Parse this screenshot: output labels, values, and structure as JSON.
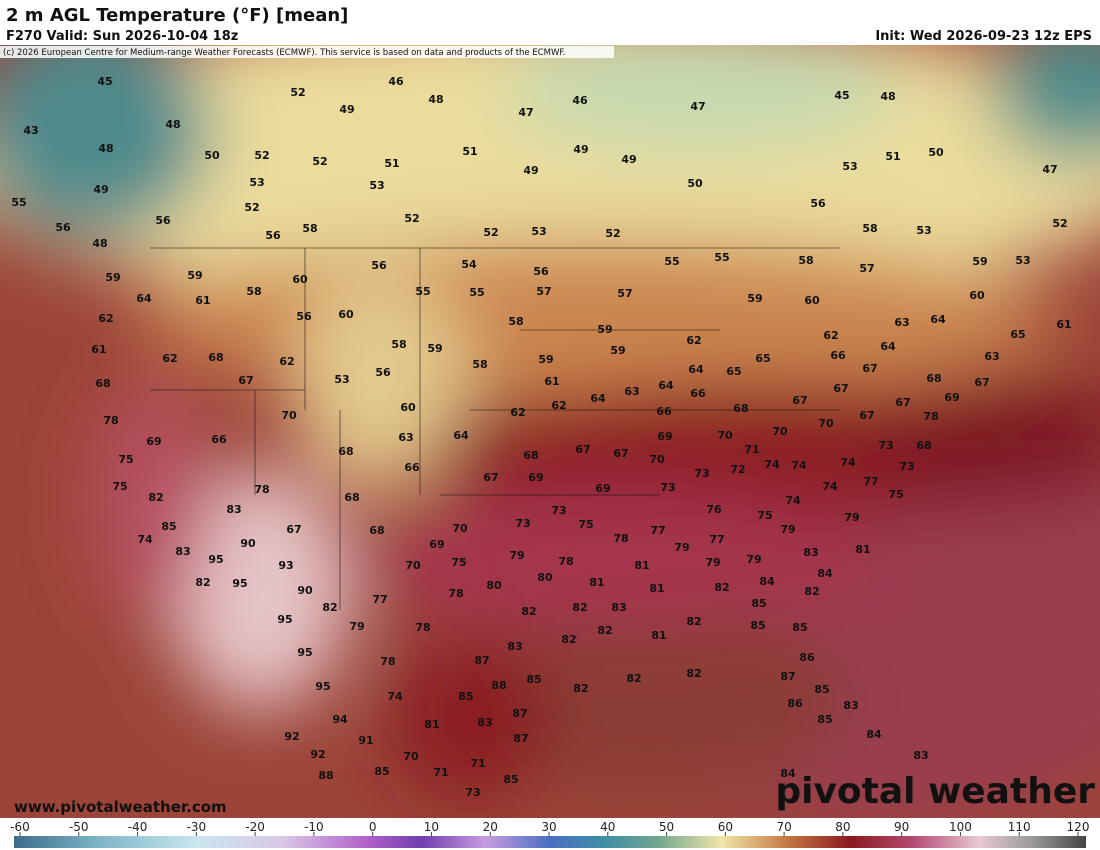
{
  "header": {
    "title": "2 m AGL Temperature (°F) [mean]",
    "valid": "F270 Valid: Sun 2026-10-04 18z",
    "init": "Init: Wed 2026-09-23 12z EPS",
    "copyright": "(c) 2026 European Centre for Medium-range Weather Forecasts (ECMWF). This service is based on data and products of the ECMWF."
  },
  "map": {
    "labels": [
      45,
      43,
      48,
      49,
      55,
      48,
      52,
      50,
      52,
      53,
      52,
      56,
      56,
      58,
      52,
      46,
      48,
      49,
      51,
      53,
      52,
      51,
      47,
      46,
      49,
      49,
      49,
      47,
      50,
      52,
      53,
      52,
      45,
      48,
      53,
      51,
      50,
      47,
      56,
      58,
      53,
      52,
      56,
      48,
      59,
      59,
      64,
      61,
      58,
      60,
      56,
      54,
      56,
      55,
      55,
      58,
      57,
      59,
      53,
      62,
      61,
      62,
      68,
      67,
      62,
      56,
      60,
      58,
      56,
      53,
      55,
      55,
      57,
      57,
      58,
      59,
      58,
      59,
      61,
      59,
      59,
      62,
      64,
      65,
      65,
      59,
      60,
      62,
      66,
      67,
      64,
      63,
      64,
      60,
      65,
      63,
      61,
      68,
      69,
      67,
      68,
      78,
      69,
      66,
      70,
      60,
      63,
      66,
      68,
      64,
      62,
      62,
      64,
      63,
      64,
      66,
      66,
      69,
      68,
      70,
      71,
      70,
      67,
      70,
      67,
      67,
      67,
      78,
      68,
      73,
      73,
      75,
      75,
      82,
      78,
      83,
      68,
      67,
      69,
      68,
      67,
      67,
      70,
      73,
      73,
      69,
      72,
      74,
      74,
      74,
      74,
      77,
      75,
      74,
      76,
      75,
      85,
      74,
      83,
      82,
      95,
      90,
      93,
      95,
      90,
      67,
      68,
      69,
      70,
      70,
      75,
      73,
      73,
      75,
      78,
      77,
      77,
      79,
      79,
      79,
      79,
      81,
      83,
      79,
      78,
      81,
      79,
      80,
      80,
      81,
      81,
      82,
      84,
      84,
      82,
      85,
      95,
      82,
      77,
      79,
      78,
      78,
      82,
      82,
      83,
      82,
      82,
      83,
      81,
      82,
      85,
      85,
      95,
      78,
      87,
      88,
      85,
      85,
      74,
      95,
      82,
      82,
      82,
      86,
      87,
      85,
      86,
      85,
      83,
      94,
      92,
      91,
      81,
      83,
      87,
      87,
      92,
      88,
      85,
      70,
      71,
      71,
      85,
      73,
      84,
      83,
      84
    ]
  },
  "colorbar": {
    "ticks": [
      -60,
      -50,
      -40,
      -30,
      -20,
      -10,
      0,
      10,
      20,
      30,
      40,
      50,
      60,
      70,
      80,
      90,
      100,
      110,
      120
    ]
  },
  "footer": {
    "website": "www.pivotalweather.com",
    "logo": "pivotal weather"
  }
}
